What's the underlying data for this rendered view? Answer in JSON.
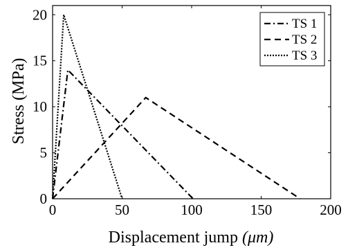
{
  "chart_data": {
    "type": "line",
    "xlabel": "Displacement jump",
    "xlabel_unit": "(μm)",
    "ylabel": "Stress (MPa)",
    "xlim": [
      0,
      200
    ],
    "ylim": [
      0,
      21
    ],
    "xticks": [
      0,
      50,
      100,
      150,
      200
    ],
    "yticks": [
      0,
      5,
      10,
      15,
      20
    ],
    "grid": false,
    "legend_position": "top-right",
    "series": [
      {
        "name": "TS 1",
        "style": "dash-dot",
        "color": "#000000",
        "x": [
          0,
          11,
          101
        ],
        "y": [
          0,
          14,
          0
        ]
      },
      {
        "name": "TS 2",
        "style": "dashed",
        "color": "#000000",
        "x": [
          0,
          67,
          178
        ],
        "y": [
          0,
          11,
          0
        ]
      },
      {
        "name": "TS 3",
        "style": "dotted",
        "color": "#000000",
        "x": [
          0,
          8,
          50
        ],
        "y": [
          0,
          20,
          0
        ]
      }
    ]
  }
}
